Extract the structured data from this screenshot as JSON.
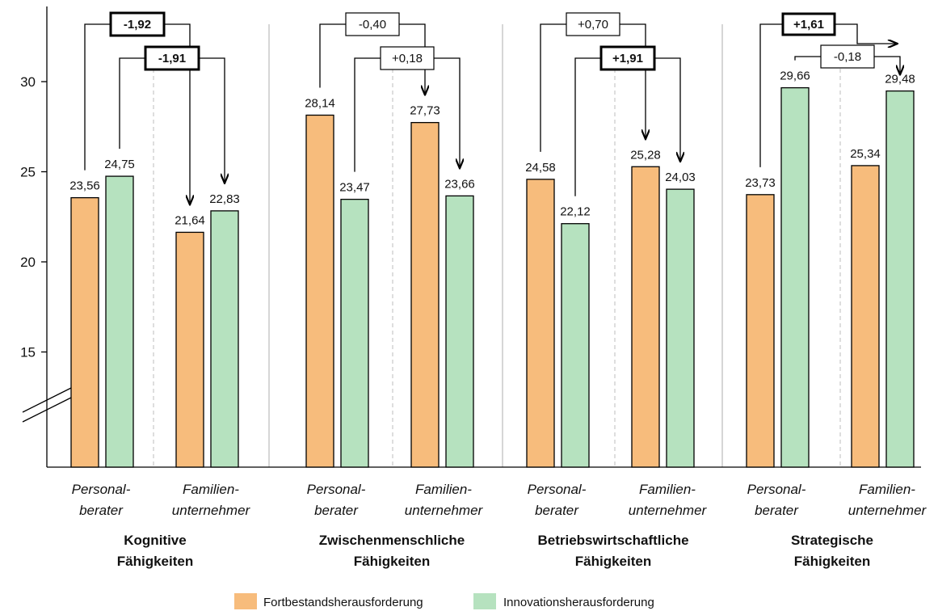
{
  "colors": {
    "orange": "#f7bc7c",
    "green": "#b6e2bf",
    "axis": "#000000",
    "separator": "#c8c8c8"
  },
  "chart_data": {
    "type": "bar",
    "ylim": [
      10,
      33
    ],
    "yticks": [
      "15",
      "20",
      "25",
      "30"
    ],
    "axis_break": true,
    "grid": false,
    "legend_position": "bottom",
    "series_names": [
      "Fortbestandsherausforderung",
      "Innovationsherausforderung"
    ],
    "group_labels": [
      [
        "Personal-",
        "berater"
      ],
      [
        "Familien-",
        "unternehmer"
      ]
    ],
    "categories": [
      {
        "label": [
          "Kognitive",
          "Fähigkeiten"
        ],
        "groups": [
          {
            "values": [
              23.56,
              24.75
            ],
            "labels": [
              "23,56",
              "24,75"
            ]
          },
          {
            "values": [
              21.64,
              22.83
            ],
            "labels": [
              "21,64",
              "22,83"
            ]
          }
        ],
        "differences": [
          {
            "label": "-1,92",
            "bold": true
          },
          {
            "label": "-1,91",
            "bold": true
          }
        ]
      },
      {
        "label": [
          "Zwischenmenschliche",
          "Fähigkeiten"
        ],
        "groups": [
          {
            "values": [
              28.14,
              23.47
            ],
            "labels": [
              "28,14",
              "23,47"
            ]
          },
          {
            "values": [
              27.73,
              23.66
            ],
            "labels": [
              "27,73",
              "23,66"
            ]
          }
        ],
        "differences": [
          {
            "label": "-0,40",
            "bold": false
          },
          {
            "label": "+0,18",
            "bold": false
          }
        ]
      },
      {
        "label": [
          "Betriebswirtschaftliche",
          "Fähigkeiten"
        ],
        "groups": [
          {
            "values": [
              24.58,
              22.12
            ],
            "labels": [
              "24,58",
              "22,12"
            ]
          },
          {
            "values": [
              25.28,
              24.03
            ],
            "labels": [
              "25,28",
              "24,03"
            ]
          }
        ],
        "differences": [
          {
            "label": "+0,70",
            "bold": false
          },
          {
            "label": "+1,91",
            "bold": true
          }
        ]
      },
      {
        "label": [
          "Strategische",
          "Fähigkeiten"
        ],
        "groups": [
          {
            "values": [
              23.73,
              29.66
            ],
            "labels": [
              "23,73",
              "29,66"
            ]
          },
          {
            "values": [
              25.34,
              29.48
            ],
            "labels": [
              "25,34",
              "29,48"
            ]
          }
        ],
        "differences": [
          {
            "label": "+1,61",
            "bold": true
          },
          {
            "label": "-0,18",
            "bold": false
          }
        ]
      }
    ]
  }
}
